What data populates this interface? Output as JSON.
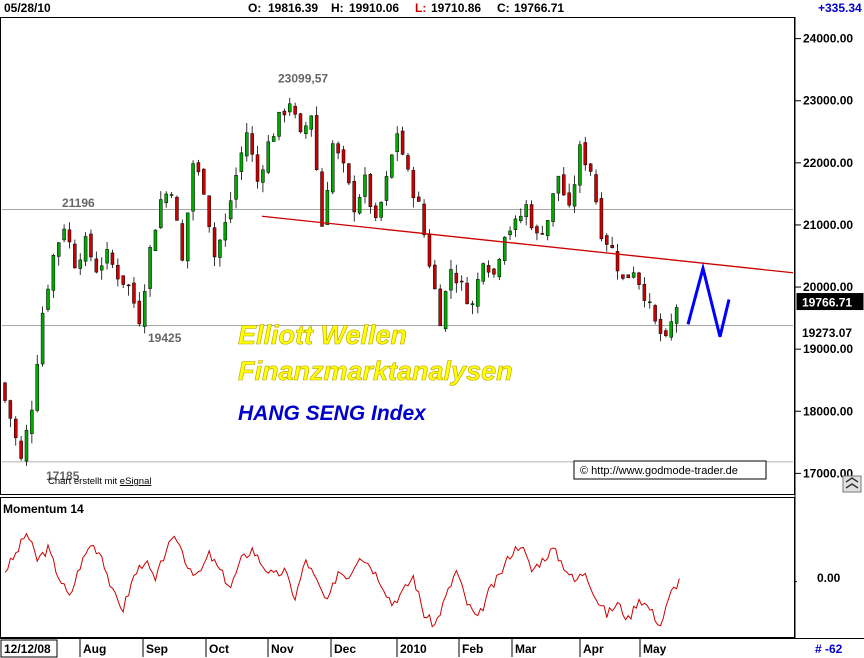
{
  "header": {
    "date": "05/28/10",
    "open_label": "O:",
    "open": "19816.39",
    "high_label": "H:",
    "high": "19910.06",
    "low_label": "L:",
    "low": "19710.86",
    "close_label": "C:",
    "close": "19766.71",
    "change": "+335.34"
  },
  "colors": {
    "bull": "#00aa00",
    "bear": "#cc0000",
    "wave": "#0000ff",
    "trend": "#cc0000",
    "momentum": "#cc0000",
    "watermark_yellow": "#ffff00",
    "watermark_blue": "#0000cc"
  },
  "watermark": {
    "line1": "Elliott Wellen",
    "line2": "Finanzmarktanalysen",
    "line3": "HANG SENG Index"
  },
  "credit": {
    "prefix": "Chart erstellt mit ",
    "brand": "eSignal"
  },
  "copyright": "© http://www.godmode-trader.de",
  "momentum_label": "Momentum 14",
  "momentum_zero": "0.00",
  "bottom_left_date": "12/12/08",
  "bottom_right_value": "# -62",
  "chart_data": {
    "type": "candlestick",
    "title": "HANG SENG Index",
    "y_axis": {
      "min": 16700,
      "max": 24300,
      "ticks": [
        {
          "value": 24000,
          "label": "24000.00"
        },
        {
          "value": 23000,
          "label": "23000.00"
        },
        {
          "value": 22000,
          "label": "22000.00"
        },
        {
          "value": 21000,
          "label": "21000.00"
        },
        {
          "value": 20000,
          "label": "20000.00"
        },
        {
          "value": 19000,
          "label": "19000.00"
        },
        {
          "value": 18000,
          "label": "18000.00"
        },
        {
          "value": 17000,
          "label": "17000.00"
        }
      ]
    },
    "price_tags": [
      {
        "value": 19766.71,
        "label": "19766.71",
        "style": "dark"
      },
      {
        "value": 19273.07,
        "label": "19273.07",
        "style": "light"
      }
    ],
    "x_labels": [
      "Aug",
      "Sep",
      "Oct",
      "Nov",
      "Dec",
      "2010",
      "Feb",
      "Mar",
      "Apr",
      "May"
    ],
    "annotations": [
      {
        "label": "23099,57",
        "value": 23099.57
      },
      {
        "label": "21196",
        "value": 21196
      },
      {
        "label": "19425",
        "value": 19425
      },
      {
        "label": "17185",
        "value": 17185
      }
    ],
    "horizontal_lines": [
      21250,
      19380,
      17185
    ],
    "trendline": {
      "from": 21140,
      "to": 20230
    },
    "close_path": [
      18450,
      17900,
      17200,
      18100,
      19600,
      20500,
      21000,
      20400,
      20700,
      20300,
      20500,
      20200,
      20000,
      19500,
      20600,
      21400,
      21600,
      20400,
      22000,
      21600,
      20500,
      21000,
      21800,
      22500,
      21700,
      22300,
      22700,
      23000,
      22400,
      22800,
      21000,
      22300,
      21900,
      21300,
      21700,
      21000,
      21700,
      22500,
      21800,
      21300,
      20400,
      19500,
      20300,
      20000,
      19700,
      20500,
      20200,
      20900,
      21000,
      21300,
      20800,
      21100,
      21800,
      21200,
      22200,
      21900,
      20900,
      20600,
      20100,
      20300,
      19900,
      19400,
      19100,
      19700
    ],
    "projection": [
      19400,
      20300,
      19200,
      19800
    ],
    "momentum": {
      "zero": 0,
      "values": [
        0.2,
        0.5,
        0.9,
        0.4,
        0.6,
        0.1,
        -0.3,
        0.3,
        0.7,
        0.5,
        -0.2,
        -0.5,
        0.1,
        0.4,
        0.0,
        0.6,
        0.8,
        0.3,
        0.1,
        0.5,
        0.2,
        -0.1,
        0.4,
        0.6,
        0.3,
        0.1,
        0.2,
        -0.3,
        0.4,
        0.0,
        -0.4,
        0.2,
        0.1,
        0.5,
        0.3,
        0.0,
        -0.4,
        -0.2,
        0.1,
        -0.6,
        -0.8,
        -0.3,
        0.2,
        -0.4,
        -0.7,
        -0.2,
        0.1,
        0.5,
        0.7,
        0.2,
        0.4,
        0.6,
        0.3,
        0.0,
        0.2,
        -0.3,
        -0.6,
        -0.4,
        -0.7,
        -0.3,
        -0.5,
        -0.8,
        -0.2,
        0.1
      ],
      "range": [
        -1,
        1.5
      ]
    }
  }
}
